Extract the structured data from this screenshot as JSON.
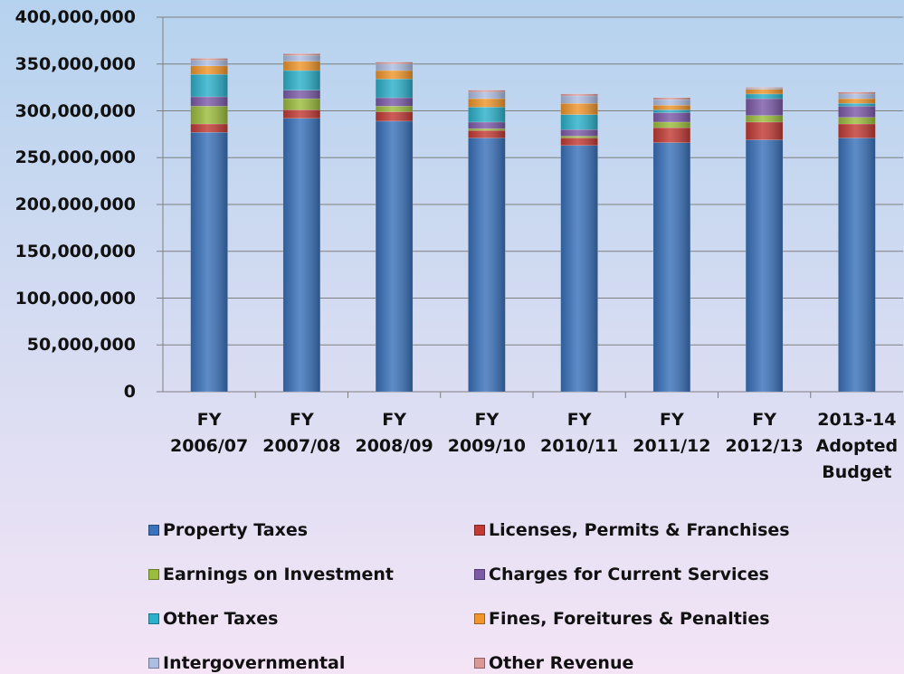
{
  "chart_data": {
    "type": "stacked_bar",
    "categories": [
      "FY 2006/07",
      "FY 2007/08",
      "FY 2008/09",
      "FY 2009/10",
      "FY 2010/11",
      "FY 2011/12",
      "FY 2012/13",
      "2013-14 Adopted Budget"
    ],
    "series": [
      {
        "name": "Property Taxes",
        "color": "#3a72bb",
        "values": [
          277000000,
          292000000,
          289000000,
          271000000,
          263000000,
          266000000,
          269000000,
          271000000
        ]
      },
      {
        "name": "Licenses, Permits & Franchises",
        "color": "#c23a35",
        "values": [
          9000000,
          9000000,
          10000000,
          8000000,
          8000000,
          16000000,
          19000000,
          15000000
        ]
      },
      {
        "name": "Earnings on Investment",
        "color": "#9cbd3c",
        "values": [
          19000000,
          12000000,
          6000000,
          2000000,
          2000000,
          6000000,
          7000000,
          7000000
        ]
      },
      {
        "name": "Charges for Current Services",
        "color": "#7c5aa8",
        "values": [
          10000000,
          9000000,
          9000000,
          7000000,
          7000000,
          10000000,
          18000000,
          12000000
        ]
      },
      {
        "name": "Other Taxes",
        "color": "#2db1cb",
        "values": [
          24000000,
          21000000,
          20000000,
          16000000,
          16000000,
          3000000,
          5000000,
          3000000
        ]
      },
      {
        "name": "Fines, Foreitures & Penalties",
        "color": "#f0962c",
        "values": [
          9000000,
          10000000,
          9000000,
          9000000,
          12000000,
          5000000,
          5000000,
          5000000
        ]
      },
      {
        "name": "Intergovernmental",
        "color": "#aebee2",
        "values": [
          6000000,
          6000000,
          7000000,
          7000000,
          8000000,
          6000000,
          1000000,
          5000000
        ]
      },
      {
        "name": "Other Revenue",
        "color": "#dc9896",
        "values": [
          2000000,
          2000000,
          2000000,
          2000000,
          2000000,
          2000000,
          1000000,
          2000000
        ]
      }
    ],
    "ylim": [
      0,
      400000000
    ],
    "yticks": [
      0,
      {
        "value": 50000000,
        "label": "50,000,000"
      },
      {
        "value": 100000000,
        "label": "100,000,000"
      },
      {
        "value": 150000000,
        "label": "150,000,000"
      },
      {
        "value": 200000000,
        "label": "200,000,000"
      },
      {
        "value": 250000000,
        "label": "250,000,000"
      },
      {
        "value": 300000000,
        "label": "300,000,000"
      },
      {
        "value": 350000000,
        "label": "350,000,000"
      },
      {
        "value": 400000000,
        "label": "400,000,000"
      }
    ],
    "grid": true
  }
}
